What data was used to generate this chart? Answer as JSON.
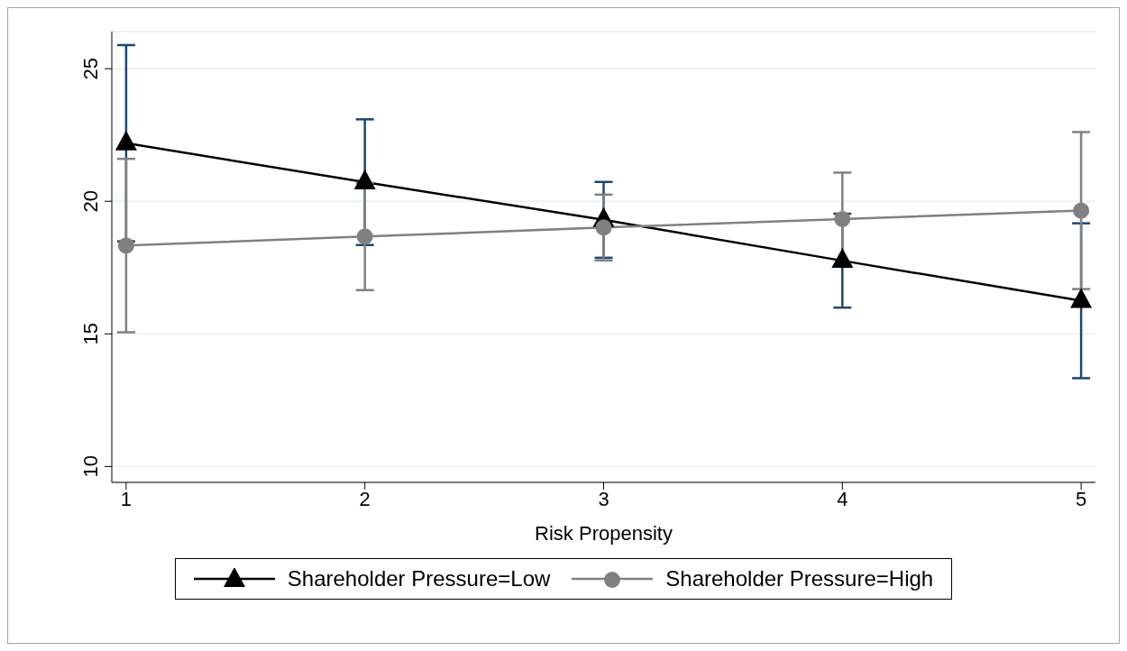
{
  "chart_data": {
    "type": "line",
    "xlabel": "Risk Propensity",
    "x": [
      1,
      2,
      3,
      4,
      5
    ],
    "series": [
      {
        "name": "Shareholder Pressure=Low",
        "color": "#000000",
        "marker": "triangle",
        "values": [
          22.19,
          20.72,
          19.3,
          17.76,
          16.25
        ],
        "errors": [
          3.7,
          2.37,
          1.43,
          1.77,
          2.92
        ]
      },
      {
        "name": "Shareholder Pressure=High",
        "color": "#808080",
        "marker": "circle",
        "values": [
          18.33,
          18.67,
          19.01,
          19.33,
          19.65
        ],
        "errors": [
          3.27,
          2.02,
          1.24,
          1.75,
          2.96
        ]
      }
    ],
    "xlim": [
      0.94,
      5.06
    ],
    "xticks": [
      1,
      2,
      3,
      4,
      5
    ],
    "ylim": [
      9.4,
      26.4
    ],
    "yticks": [
      10,
      15,
      20,
      25
    ],
    "grid": "y",
    "legend": "bottom"
  }
}
